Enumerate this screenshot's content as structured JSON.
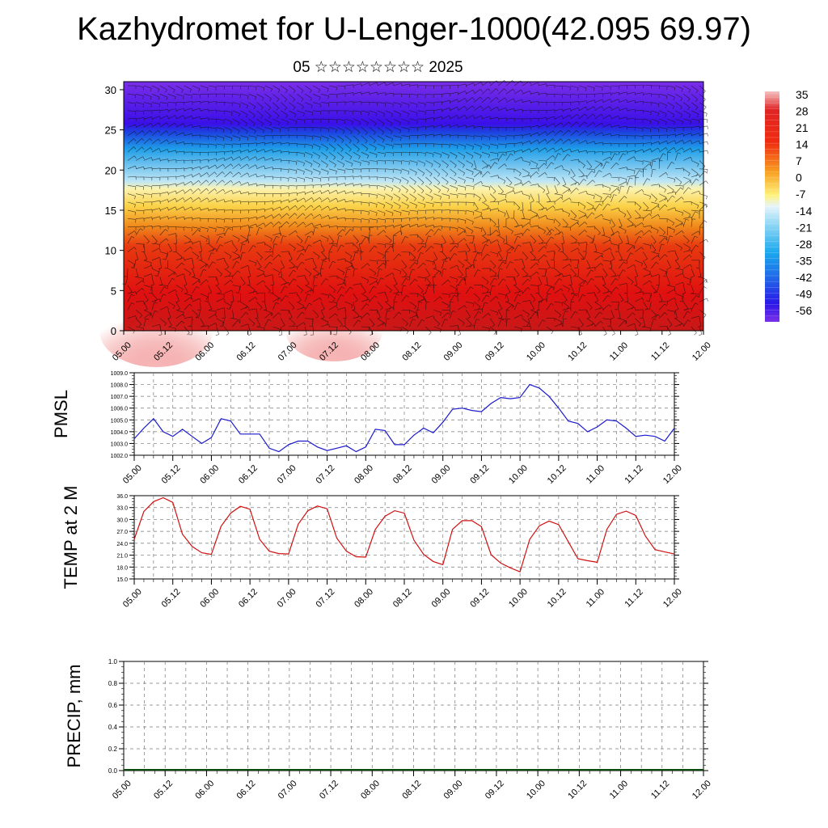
{
  "title": "Kazhydromet for U-Lenger-1000(42.095 69.97)",
  "subtitle": "05 ☆☆☆☆☆☆☆☆ 2025",
  "colors": {
    "pmsl_line": "#1a1acc",
    "temp_line": "#d01010"
  },
  "chart_data": [
    {
      "type": "heatmap",
      "name": "vertical-section",
      "x_ticks": [
        "05.00",
        "05.12",
        "06.00",
        "06.12",
        "07.00",
        "07.12",
        "08.00",
        "08.12",
        "09.00",
        "09.12",
        "10.00",
        "10.12",
        "11.00",
        "11.12",
        "12.00"
      ],
      "ylim": [
        0,
        31
      ],
      "y_ticks": [
        "0",
        "5",
        "10",
        "15",
        "20",
        "25",
        "30"
      ],
      "colorbar_labels": [
        "35",
        "28",
        "21",
        "14",
        "7",
        "0",
        "-7",
        "-14",
        "-21",
        "-28",
        "-35",
        "-42",
        "-49",
        "-56"
      ]
    },
    {
      "type": "line",
      "name": "pmsl",
      "ylabel": "PMSL",
      "ylim": [
        1002.0,
        1009.0
      ],
      "y_ticks": [
        "1002.0",
        "1003.0",
        "1004.0",
        "1005.0",
        "1006.0",
        "1007.0",
        "1008.0",
        "1009.0"
      ],
      "x_ticks": [
        "05.00",
        "05.12",
        "06.00",
        "06.12",
        "07.00",
        "07.12",
        "08.00",
        "08.12",
        "09.00",
        "09.12",
        "10.00",
        "10.12",
        "11.00",
        "11.12",
        "12.00"
      ],
      "values": [
        1003.4,
        1004.3,
        1005.1,
        1004.0,
        1003.6,
        1004.2,
        1003.6,
        1003.0,
        1003.5,
        1005.1,
        1004.9,
        1003.8,
        1003.8,
        1003.8,
        1002.6,
        1002.3,
        1002.9,
        1003.2,
        1003.2,
        1002.7,
        1002.4,
        1002.6,
        1002.8,
        1002.3,
        1002.7,
        1004.2,
        1004.1,
        1002.9,
        1002.9,
        1003.7,
        1004.3,
        1003.9,
        1004.8,
        1005.9,
        1006.0,
        1005.8,
        1005.7,
        1006.4,
        1006.9,
        1006.8,
        1006.9,
        1008.0,
        1007.7,
        1007.0,
        1006.0,
        1004.9,
        1004.7,
        1004.0,
        1004.4,
        1005.0,
        1004.9,
        1004.3,
        1003.6,
        1003.7,
        1003.6,
        1003.2,
        1004.3
      ]
    },
    {
      "type": "line",
      "name": "temp",
      "ylabel": "TEMP at 2 M",
      "ylim": [
        15.0,
        36.0
      ],
      "y_ticks": [
        "15.0",
        "18.0",
        "21.0",
        "24.0",
        "27.0",
        "30.0",
        "33.0",
        "36.0"
      ],
      "x_ticks": [
        "05.00",
        "05.12",
        "06.00",
        "06.12",
        "07.00",
        "07.12",
        "08.00",
        "08.12",
        "09.00",
        "09.12",
        "10.00",
        "10.12",
        "11.00",
        "11.12",
        "12.00"
      ],
      "values": [
        25.0,
        32.0,
        34.5,
        35.5,
        34.3,
        26.3,
        23.2,
        21.6,
        21.2,
        28.3,
        31.6,
        33.3,
        32.6,
        25.0,
        22.0,
        21.4,
        21.3,
        28.8,
        32.2,
        33.4,
        32.7,
        25.3,
        22.0,
        20.6,
        20.5,
        27.5,
        30.8,
        32.2,
        31.6,
        24.8,
        21.2,
        19.4,
        18.6,
        27.5,
        29.7,
        29.7,
        28.2,
        21.1,
        19.0,
        17.8,
        16.8,
        25.0,
        28.4,
        29.6,
        28.7,
        24.4,
        20.1,
        19.6,
        19.2,
        27.5,
        31.3,
        32.1,
        31.0,
        25.8,
        22.4,
        21.8,
        21.3
      ]
    },
    {
      "type": "bar",
      "name": "precip",
      "ylabel": "PRECIP, mm",
      "ylim": [
        0.0,
        1.0
      ],
      "y_ticks": [
        "0.0",
        "0.2",
        "0.4",
        "0.6",
        "0.8",
        "1.0"
      ],
      "x_ticks": [
        "05.00",
        "05.12",
        "06.00",
        "06.12",
        "07.00",
        "07.12",
        "08.00",
        "08.12",
        "09.00",
        "09.12",
        "10.00",
        "10.12",
        "11.00",
        "11.12",
        "12.00"
      ],
      "values": []
    }
  ]
}
